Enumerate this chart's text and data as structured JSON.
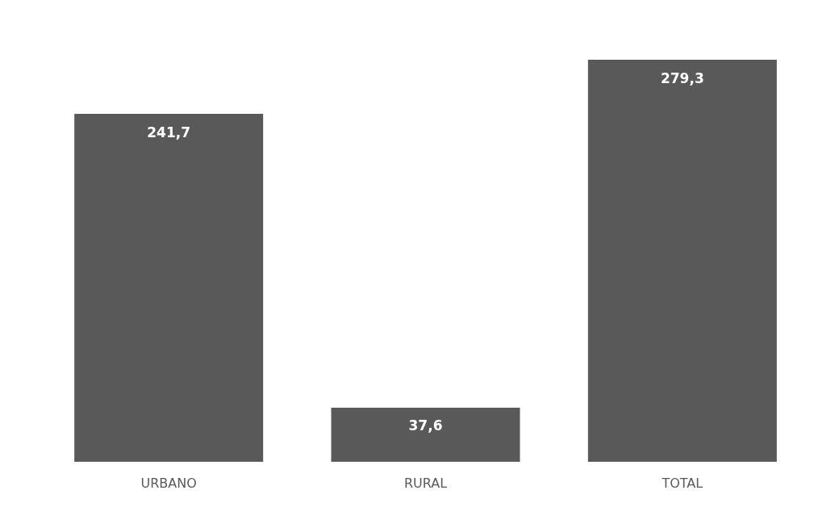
{
  "chart_data": {
    "type": "bar",
    "categories": [
      "URBANO",
      "RURAL",
      "TOTAL"
    ],
    "values": [
      241.7,
      37.6,
      279.3
    ],
    "color": "#595959",
    "value_labels": [
      "241,7",
      "37,6",
      "279,3"
    ]
  }
}
